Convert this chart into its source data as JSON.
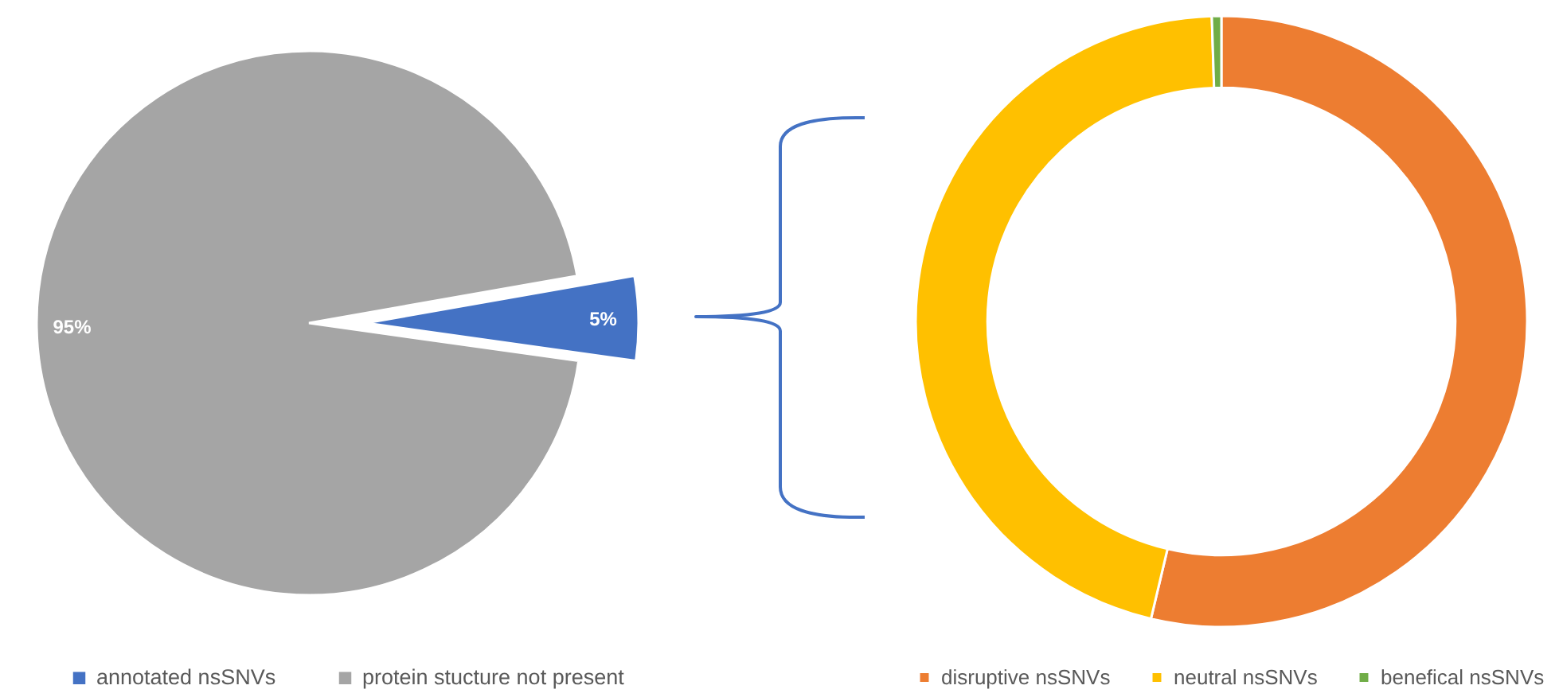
{
  "chart_data": [
    {
      "type": "pie",
      "categories": [
        "annotated nsSNVs",
        "protein stucture not present"
      ],
      "values": [
        5,
        95
      ],
      "colors": [
        "#4472c4",
        "#a5a5a5"
      ],
      "value_labels": [
        "5%",
        "95%"
      ],
      "legend": "bottom"
    },
    {
      "type": "donut",
      "categories": [
        "disruptive nsSNVs",
        "neutral nsSNVs",
        "benefical nsSNVs"
      ],
      "values": [
        53.7,
        45.8,
        0.5
      ],
      "colors": [
        "#ed7d31",
        "#ffc000",
        "#70ad47"
      ],
      "legend": "bottom"
    }
  ]
}
